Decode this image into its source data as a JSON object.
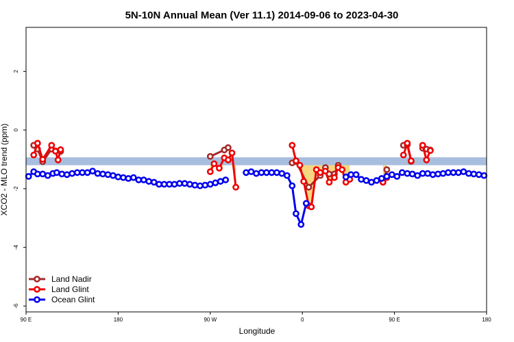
{
  "chart_data": {
    "type": "line",
    "title": "5N-10N Annual Mean (Ver 11.1)   2014-09-06 to 2023-04-30",
    "xlabel": "Longitude",
    "ylabel": "XCO2 - MLO trend (ppm)",
    "xlim": [
      90,
      450
    ],
    "ylim": [
      -6.2,
      3.5
    ],
    "x_ticks": [
      {
        "value": 90,
        "label": "90 E"
      },
      {
        "value": 162,
        "label": "180"
      },
      {
        "value": 234,
        "label": "90 W"
      },
      {
        "value": 306,
        "label": "0"
      },
      {
        "value": 378,
        "label": "90 E"
      },
      {
        "value": 450,
        "label": "180"
      }
    ],
    "y_ticks": [
      {
        "value": 2,
        "label": "2"
      },
      {
        "value": 0,
        "label": "0"
      },
      {
        "value": -2,
        "label": "-2"
      },
      {
        "value": -4,
        "label": "-4"
      },
      {
        "value": -6,
        "label": "-6"
      }
    ],
    "band": {
      "y_low": -1.2,
      "y_high": -0.93,
      "color": "#a8bede"
    },
    "yellow_fill_color": "#f5cf6a",
    "legend_position": "bottom-left",
    "series": [
      {
        "name": "Land Nadir",
        "color": "#a52a2a",
        "segments": [
          [
            [
              96,
              -0.52
            ],
            [
              99,
              -0.65
            ],
            [
              103,
              -1.08
            ],
            [
              110,
              -0.65
            ],
            [
              113,
              -0.71
            ],
            [
              117,
              -0.73
            ]
          ],
          [
            [
              234,
              -0.9
            ],
            [
              245,
              -0.68
            ],
            [
              248,
              -0.6
            ]
          ],
          [
            [
              298,
              -1.12
            ],
            [
              301,
              -1.07
            ],
            [
              311,
              -1.95
            ],
            [
              320,
              -1.55
            ],
            [
              324,
              -1.28
            ],
            [
              327,
              -1.5
            ],
            [
              331,
              -1.5
            ],
            [
              334,
              -1.2
            ]
          ],
          [
            [
              369,
              -1.78
            ],
            [
              372,
              -1.35
            ]
          ],
          [
            [
              385,
              -0.52
            ],
            [
              388,
              -0.5
            ],
            [
              391,
              -1.07
            ]
          ],
          [
            [
              400,
              -0.62
            ],
            [
              403,
              -0.65
            ],
            [
              406,
              -0.68
            ]
          ]
        ]
      },
      {
        "name": "Land Glint",
        "color": "#ee0000",
        "segments": [
          [
            [
              96,
              -0.85
            ],
            [
              99,
              -0.45
            ],
            [
              103,
              -1.0
            ],
            [
              110,
              -0.52
            ],
            [
              113,
              -0.72
            ],
            [
              115,
              -1.02
            ],
            [
              117,
              -0.67
            ]
          ],
          [
            [
              234,
              -1.42
            ],
            [
              237,
              -1.15
            ],
            [
              241,
              -1.3
            ],
            [
              245,
              -0.95
            ],
            [
              248,
              -1.02
            ],
            [
              251,
              -0.78
            ],
            [
              254,
              -1.95
            ]
          ],
          [
            [
              298,
              -0.52
            ],
            [
              301,
              -1.05
            ],
            [
              304,
              -1.2
            ],
            [
              307,
              -1.75
            ],
            [
              311,
              -2.58
            ],
            [
              313,
              -2.62
            ],
            [
              317,
              -1.35
            ],
            [
              320,
              -1.45
            ],
            [
              324,
              -1.4
            ],
            [
              327,
              -1.78
            ],
            [
              331,
              -1.62
            ],
            [
              334,
              -1.28
            ],
            [
              337,
              -1.35
            ],
            [
              340,
              -1.78
            ],
            [
              343,
              -1.68
            ]
          ],
          [
            [
              369,
              -1.78
            ],
            [
              372,
              -1.62
            ]
          ],
          [
            [
              385,
              -0.85
            ],
            [
              388,
              -0.45
            ],
            [
              391,
              -1.05
            ]
          ],
          [
            [
              400,
              -0.52
            ],
            [
              403,
              -1.02
            ],
            [
              406,
              -0.7
            ]
          ]
        ]
      },
      {
        "name": "Ocean Glint",
        "color": "#0000ee",
        "segments": [
          [
            [
              92,
              -1.58
            ],
            [
              96,
              -1.42
            ],
            [
              99,
              -1.5
            ],
            [
              103,
              -1.5
            ],
            [
              107,
              -1.55
            ],
            [
              111,
              -1.48
            ],
            [
              114,
              -1.45
            ],
            [
              118,
              -1.5
            ],
            [
              122,
              -1.52
            ],
            [
              126,
              -1.48
            ],
            [
              130,
              -1.45
            ],
            [
              134,
              -1.45
            ],
            [
              138,
              -1.45
            ],
            [
              142,
              -1.4
            ],
            [
              146,
              -1.48
            ],
            [
              150,
              -1.5
            ],
            [
              154,
              -1.52
            ],
            [
              158,
              -1.55
            ],
            [
              162,
              -1.6
            ],
            [
              166,
              -1.62
            ],
            [
              170,
              -1.65
            ],
            [
              174,
              -1.62
            ],
            [
              178,
              -1.7
            ],
            [
              182,
              -1.7
            ],
            [
              186,
              -1.75
            ],
            [
              190,
              -1.78
            ],
            [
              194,
              -1.85
            ],
            [
              198,
              -1.85
            ],
            [
              202,
              -1.85
            ],
            [
              206,
              -1.85
            ],
            [
              210,
              -1.82
            ],
            [
              214,
              -1.82
            ],
            [
              218,
              -1.85
            ],
            [
              222,
              -1.88
            ],
            [
              226,
              -1.9
            ],
            [
              230,
              -1.88
            ],
            [
              234,
              -1.85
            ],
            [
              238,
              -1.8
            ],
            [
              242,
              -1.75
            ],
            [
              246,
              -1.7
            ]
          ],
          [
            [
              262,
              -1.45
            ],
            [
              266,
              -1.42
            ],
            [
              270,
              -1.48
            ],
            [
              274,
              -1.45
            ],
            [
              278,
              -1.45
            ],
            [
              282,
              -1.45
            ],
            [
              286,
              -1.45
            ],
            [
              290,
              -1.48
            ],
            [
              294,
              -1.55
            ],
            [
              298,
              -1.9
            ],
            [
              301,
              -2.85
            ],
            [
              305,
              -3.22
            ],
            [
              309,
              -2.5
            ]
          ],
          [
            [
              340,
              -1.6
            ],
            [
              344,
              -1.52
            ],
            [
              348,
              -1.52
            ],
            [
              352,
              -1.68
            ],
            [
              356,
              -1.72
            ],
            [
              360,
              -1.78
            ],
            [
              364,
              -1.72
            ],
            [
              368,
              -1.65
            ],
            [
              372,
              -1.58
            ],
            [
              376,
              -1.52
            ],
            [
              380,
              -1.58
            ],
            [
              384,
              -1.45
            ],
            [
              388,
              -1.48
            ],
            [
              392,
              -1.5
            ],
            [
              396,
              -1.55
            ],
            [
              400,
              -1.48
            ],
            [
              404,
              -1.48
            ],
            [
              408,
              -1.52
            ],
            [
              412,
              -1.5
            ],
            [
              416,
              -1.48
            ],
            [
              420,
              -1.45
            ],
            [
              424,
              -1.45
            ],
            [
              428,
              -1.45
            ],
            [
              432,
              -1.42
            ],
            [
              436,
              -1.48
            ],
            [
              440,
              -1.5
            ],
            [
              444,
              -1.52
            ],
            [
              448,
              -1.55
            ]
          ]
        ]
      }
    ]
  }
}
